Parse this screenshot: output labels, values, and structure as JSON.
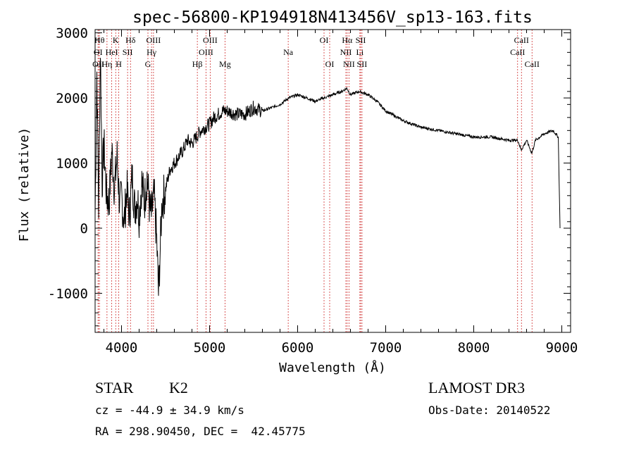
{
  "chart_data": {
    "type": "line",
    "title": "spec-56800-KP194918N413456V_sp13-163.fits",
    "xlabel": "Wavelength (Å)",
    "ylabel": "Flux (relative)",
    "xlim": [
      3700,
      9100
    ],
    "ylim": [
      -1600,
      3050
    ],
    "xticks": [
      4000,
      5000,
      6000,
      7000,
      8000,
      9000
    ],
    "yticks": [
      -1000,
      0,
      1000,
      2000,
      3000
    ],
    "grid": false,
    "series": [
      {
        "x": [
          3700,
          3720,
          3740,
          3760,
          3780,
          3800,
          3830,
          3860,
          3890,
          3920,
          3950,
          3980,
          4000,
          4030,
          4060,
          4090,
          4120,
          4150,
          4180,
          4200,
          4230,
          4260,
          4290,
          4320,
          4340,
          4370,
          4400,
          4420,
          4440,
          4460,
          4500,
          4550,
          4600,
          4650,
          4700,
          4750,
          4800,
          4850,
          4900,
          4950,
          5000,
          5050,
          5100,
          5150,
          5200,
          5300,
          5400,
          5500,
          5600,
          5700,
          5800,
          5900,
          6000,
          6100,
          6200,
          6300,
          6400,
          6500,
          6560,
          6600,
          6700,
          6800,
          6900,
          7000,
          7200,
          7400,
          7600,
          7800,
          8000,
          8200,
          8400,
          8500,
          8540,
          8600,
          8660,
          8700,
          8800,
          8900,
          8960,
          8980
        ],
        "y": [
          200,
          2400,
          300,
          2800,
          700,
          1300,
          500,
          400,
          1200,
          600,
          1100,
          300,
          500,
          100,
          600,
          200,
          800,
          300,
          500,
          200,
          700,
          400,
          800,
          300,
          200,
          500,
          -200,
          -1000,
          -300,
          400,
          600,
          900,
          1000,
          1100,
          1200,
          1350,
          1300,
          1400,
          1500,
          1550,
          1600,
          1700,
          1750,
          1800,
          1800,
          1750,
          1750,
          1850,
          1800,
          1850,
          1900,
          2000,
          2050,
          2000,
          1950,
          2000,
          2050,
          2100,
          2150,
          2050,
          2100,
          2050,
          1950,
          1800,
          1650,
          1550,
          1500,
          1450,
          1400,
          1400,
          1350,
          1350,
          1200,
          1350,
          1150,
          1350,
          1450,
          1500,
          1400,
          0
        ]
      }
    ],
    "lines": [
      {
        "x": 3750,
        "label": "Hθ",
        "row": 0
      },
      {
        "x": 3734,
        "label": "OI",
        "row": 1
      },
      {
        "x": 3736,
        "label": "OII",
        "row": 2
      },
      {
        "x": 3835,
        "label": "Hη",
        "row": 2
      },
      {
        "x": 3889,
        "label": "HeI",
        "row": 1
      },
      {
        "x": 3934,
        "label": "K",
        "row": 0
      },
      {
        "x": 3969,
        "label": "H",
        "row": 2
      },
      {
        "x": 4069,
        "label": "SII",
        "row": 1
      },
      {
        "x": 4102,
        "label": "Hδ",
        "row": 0
      },
      {
        "x": 4300,
        "label": "G",
        "row": 2
      },
      {
        "x": 4341,
        "label": "Hγ",
        "row": 1
      },
      {
        "x": 4363,
        "label": "OIII",
        "row": 0
      },
      {
        "x": 4861,
        "label": "Hβ",
        "row": 2
      },
      {
        "x": 4959,
        "label": "OIII",
        "row": 1
      },
      {
        "x": 5007,
        "label": "OIII",
        "row": 0
      },
      {
        "x": 5175,
        "label": "Mg",
        "row": 2
      },
      {
        "x": 5893,
        "label": "Na",
        "row": 1
      },
      {
        "x": 6300,
        "label": "OI",
        "row": 0
      },
      {
        "x": 6364,
        "label": "OI",
        "row": 2
      },
      {
        "x": 6548,
        "label": "NII",
        "row": 1
      },
      {
        "x": 6563,
        "label": "Hα",
        "row": 0
      },
      {
        "x": 6583,
        "label": "NII",
        "row": 2
      },
      {
        "x": 6707,
        "label": "Li",
        "row": 1
      },
      {
        "x": 6716,
        "label": "SII",
        "row": 0
      },
      {
        "x": 6731,
        "label": "SII",
        "row": 2
      },
      {
        "x": 8498,
        "label": "CaII",
        "row": 1
      },
      {
        "x": 8542,
        "label": "CaII",
        "row": 0
      },
      {
        "x": 8662,
        "label": "CaII",
        "row": 2
      }
    ]
  },
  "info": {
    "class": "STAR",
    "subclass": "K2",
    "survey": "LAMOST DR3",
    "cz": "cz = -44.9 ± 34.9 km/s",
    "obsdate": "Obs-Date: 20140522",
    "radec": "RA = 298.90450, DEC =  42.45775"
  },
  "colors": {
    "axis": "#000000",
    "spectrum": "#000000",
    "line_marker": "#d03030"
  }
}
